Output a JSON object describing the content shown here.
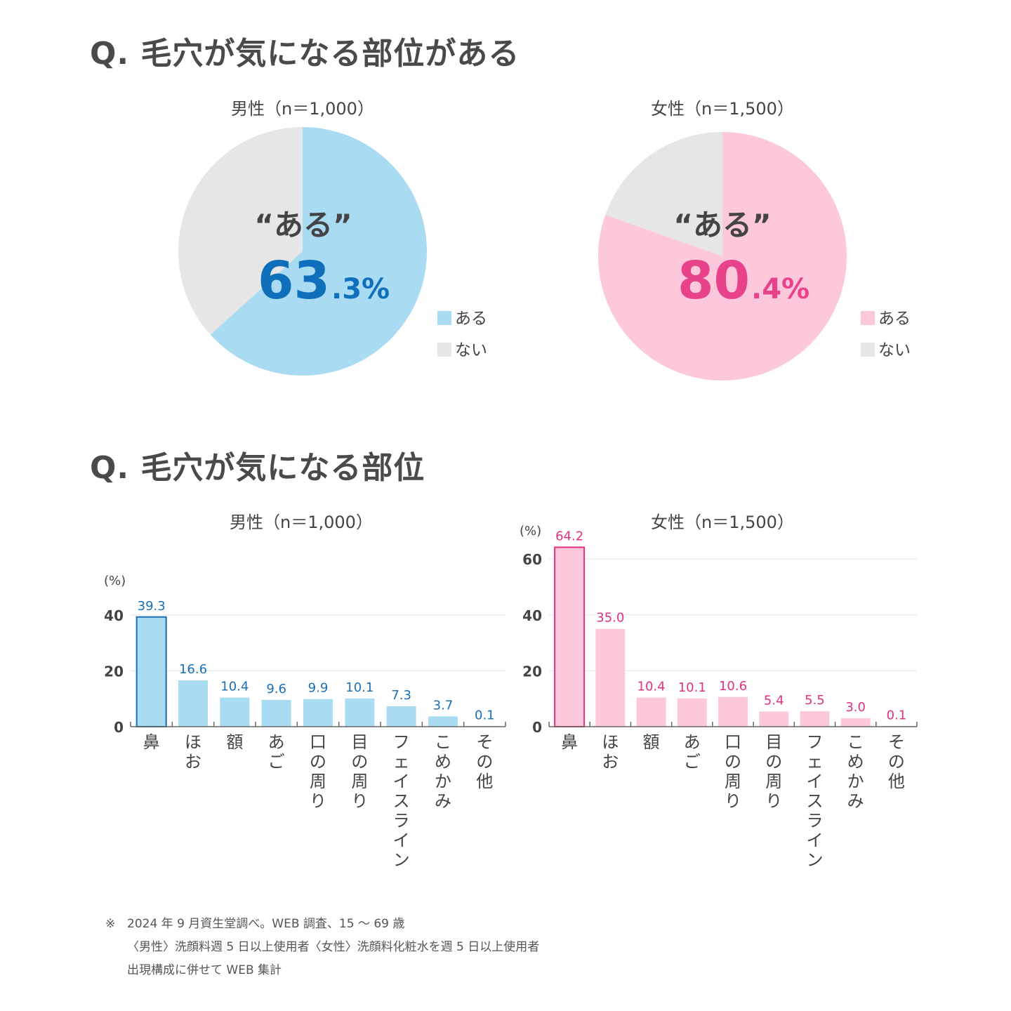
{
  "section1": {
    "title": "Q. 毛穴が気になる部位がある"
  },
  "section2": {
    "title": "Q. 毛穴が気になる部位"
  },
  "pies": [
    {
      "subtitle": "男性（n＝1,000）",
      "quote": "“ある”",
      "pct_int": "63",
      "pct_dec": ".3%",
      "accent": "#0f6fba",
      "legend": [
        "ある",
        "ない"
      ]
    },
    {
      "subtitle": "女性（n＝1,500）",
      "quote": "“ある”",
      "pct_int": "80",
      "pct_dec": ".4%",
      "accent": "#e7428a",
      "legend": [
        "ある",
        "ない"
      ]
    }
  ],
  "bars": [
    {
      "subtitle": "男性（n＝1,000）",
      "unit": "(%)"
    },
    {
      "subtitle": "女性（n＝1,500）",
      "unit": "(%)"
    }
  ],
  "chart_data": [
    {
      "type": "pie",
      "title": "男性（n＝1,000）",
      "categories": [
        "ある",
        "ない"
      ],
      "values": [
        63.3,
        36.7
      ],
      "colors": [
        "#a9dcf2",
        "#e6e6e6"
      ],
      "legend": "right"
    },
    {
      "type": "pie",
      "title": "女性（n＝1,500）",
      "categories": [
        "ある",
        "ない"
      ],
      "values": [
        80.4,
        19.6
      ],
      "colors": [
        "#fdc8dc",
        "#e6e6e6"
      ],
      "legend": "right"
    },
    {
      "type": "bar",
      "title": "男性（n＝1,000）",
      "ylabel": "(%)",
      "categories": [
        "鼻",
        "ほお",
        "額",
        "あご",
        "口の周り",
        "目の周り",
        "フェイスライン",
        "こめかみ",
        "その他"
      ],
      "values": [
        39.3,
        16.6,
        10.4,
        9.6,
        9.9,
        10.1,
        7.3,
        3.7,
        0.1
      ],
      "value_labels": [
        "39.3",
        "16.6",
        "10.4",
        "9.6",
        "9.9",
        "10.1",
        "7.3",
        "3.7",
        "0.1"
      ],
      "ylim": [
        0,
        40
      ],
      "yticks": [
        0,
        20,
        40
      ],
      "grid": true,
      "bar_color": "#a9dcf2",
      "highlight_color": "#1a6fb5",
      "label_color": "#1a6fb5"
    },
    {
      "type": "bar",
      "title": "女性（n＝1,500）",
      "ylabel": "(%)",
      "categories": [
        "鼻",
        "ほお",
        "額",
        "あご",
        "口の周り",
        "目の周り",
        "フェイスライン",
        "こめかみ",
        "その他"
      ],
      "values": [
        64.2,
        35.0,
        10.4,
        10.1,
        10.6,
        5.4,
        5.5,
        3.0,
        0.1
      ],
      "value_labels": [
        "64.2",
        "35.0",
        "10.4",
        "10.1",
        "10.6",
        "5.4",
        "5.5",
        "3.0",
        "0.1"
      ],
      "ylim": [
        0,
        60
      ],
      "yticks": [
        0,
        20,
        40,
        60
      ],
      "grid": true,
      "bar_color": "#fdc8dc",
      "highlight_color": "#e2317f",
      "label_color": "#e2317f"
    }
  ],
  "footnote": {
    "mark": "※",
    "line1": "2024 年 9 月資生堂調べ。WEB 調査、15 〜 69 歳",
    "line2": "〈男性〉洗顔料週 5 日以上使用者〈女性〉洗顔料化粧水を週 5 日以上使用者",
    "line3": "出現構成に併せて WEB 集計"
  }
}
